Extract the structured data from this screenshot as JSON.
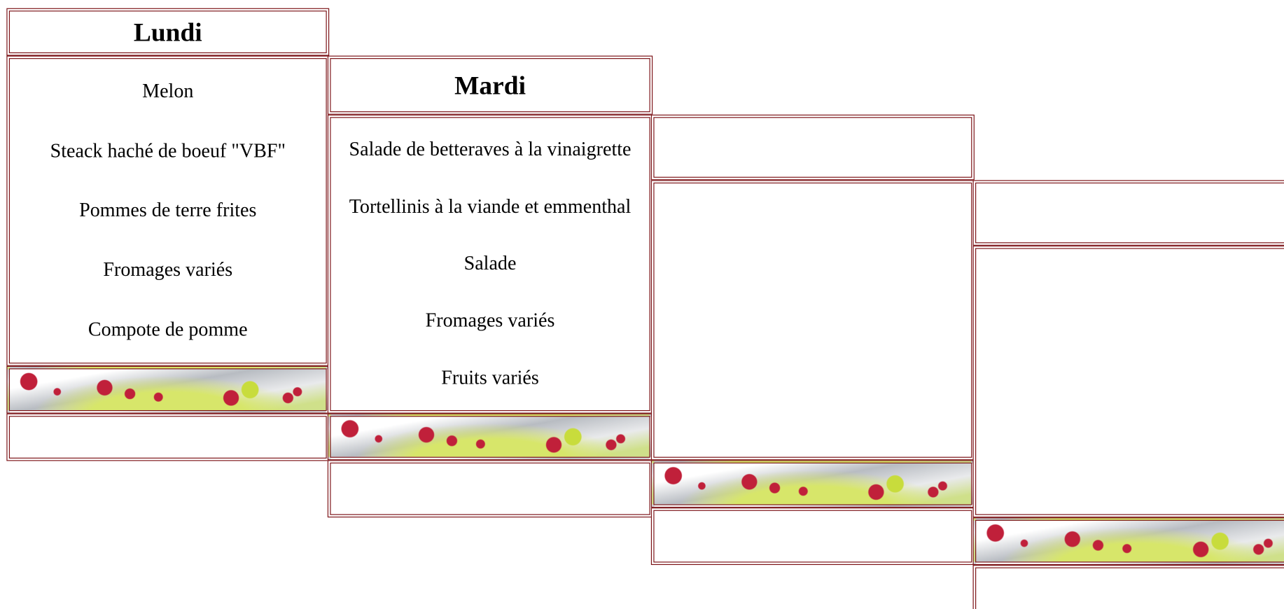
{
  "days": [
    {
      "title": "Lundi",
      "items": [
        "Melon",
        "Steack haché de boeuf  \"VBF\"",
        "Pommes de terre frites",
        "Fromages variés",
        "Compote de pomme"
      ]
    },
    {
      "title": "Mardi",
      "items": [
        "Salade de betteraves à la vinaigrette",
        "Tortellinis à la viande et emmenthal",
        "Salade",
        "Fromages variés",
        "Fruits variés"
      ]
    }
  ]
}
